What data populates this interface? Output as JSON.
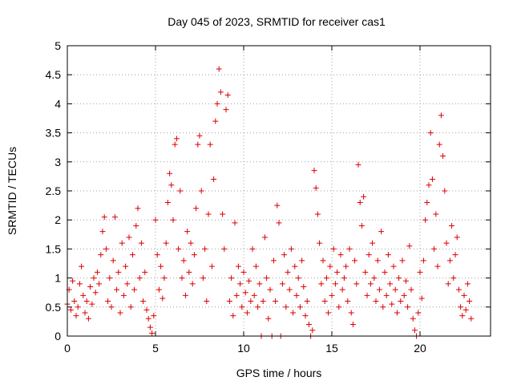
{
  "chart_data": {
    "type": "scatter",
    "title": "Day 045 of 2023, SRMTID for receiver cas1",
    "xlabel": "GPS time / hours",
    "ylabel": "SRMTID / TECUs",
    "xlim": [
      0,
      24
    ],
    "ylim": [
      0,
      5
    ],
    "xticks": [
      0,
      5,
      10,
      15,
      20
    ],
    "xtick_labels": [
      "0",
      "5",
      "10",
      "15",
      "20"
    ],
    "yticks": [
      0,
      0.5,
      1,
      1.5,
      2,
      2.5,
      3,
      3.5,
      4,
      4.5,
      5
    ],
    "ytick_labels": [
      "0",
      "0.5",
      "1",
      "1.5",
      "2",
      "2.5",
      "3",
      "3.5",
      "4",
      "4.5",
      "5"
    ],
    "grid": true,
    "marker": "+",
    "color": "#dd0000",
    "series": [
      {
        "name": "cas1",
        "points": [
          [
            0.0,
            0.55
          ],
          [
            0.1,
            0.8
          ],
          [
            0.2,
            0.45
          ],
          [
            0.3,
            0.95
          ],
          [
            0.4,
            0.6
          ],
          [
            0.5,
            0.35
          ],
          [
            0.6,
            0.5
          ],
          [
            0.7,
            0.9
          ],
          [
            0.8,
            1.2
          ],
          [
            0.9,
            0.7
          ],
          [
            1.0,
            0.4
          ],
          [
            1.1,
            0.6
          ],
          [
            1.2,
            0.3
          ],
          [
            1.3,
            0.85
          ],
          [
            1.4,
            0.55
          ],
          [
            1.5,
            1.0
          ],
          [
            1.6,
            0.75
          ],
          [
            1.7,
            1.1
          ],
          [
            1.8,
            0.9
          ],
          [
            1.9,
            1.4
          ],
          [
            2.0,
            1.8
          ],
          [
            2.1,
            2.05
          ],
          [
            2.2,
            1.5
          ],
          [
            2.3,
            0.6
          ],
          [
            2.4,
            1.0
          ],
          [
            2.5,
            0.5
          ],
          [
            2.6,
            1.3
          ],
          [
            2.7,
            2.05
          ],
          [
            2.8,
            0.8
          ],
          [
            2.9,
            1.1
          ],
          [
            3.0,
            0.4
          ],
          [
            3.1,
            1.6
          ],
          [
            3.2,
            0.7
          ],
          [
            3.3,
            1.2
          ],
          [
            3.4,
            0.9
          ],
          [
            3.5,
            1.7
          ],
          [
            3.6,
            0.5
          ],
          [
            3.7,
            1.4
          ],
          [
            3.8,
            0.8
          ],
          [
            3.9,
            1.9
          ],
          [
            4.0,
            2.2
          ],
          [
            4.1,
            1.0
          ],
          [
            4.2,
            1.6
          ],
          [
            4.3,
            0.6
          ],
          [
            4.4,
            1.1
          ],
          [
            4.5,
            0.45
          ],
          [
            4.6,
            0.3
          ],
          [
            4.7,
            0.15
          ],
          [
            4.8,
            0.05
          ],
          [
            4.9,
            0.35
          ],
          [
            5.0,
            2.0
          ],
          [
            5.1,
            1.4
          ],
          [
            5.2,
            0.8
          ],
          [
            5.3,
            1.2
          ],
          [
            5.4,
            0.65
          ],
          [
            5.5,
            1.0
          ],
          [
            5.6,
            1.6
          ],
          [
            5.7,
            2.3
          ],
          [
            5.8,
            2.8
          ],
          [
            5.9,
            2.6
          ],
          [
            6.0,
            2.0
          ],
          [
            6.1,
            3.3
          ],
          [
            6.2,
            3.4
          ],
          [
            6.3,
            1.5
          ],
          [
            6.4,
            2.5
          ],
          [
            6.5,
            1.0
          ],
          [
            6.6,
            1.3
          ],
          [
            6.7,
            0.7
          ],
          [
            6.8,
            1.8
          ],
          [
            6.9,
            1.1
          ],
          [
            7.0,
            1.6
          ],
          [
            7.1,
            0.9
          ],
          [
            7.2,
            1.4
          ],
          [
            7.3,
            2.2
          ],
          [
            7.4,
            3.3
          ],
          [
            7.5,
            3.45
          ],
          [
            7.6,
            2.5
          ],
          [
            7.7,
            1.0
          ],
          [
            7.8,
            1.5
          ],
          [
            7.9,
            0.6
          ],
          [
            8.0,
            2.1
          ],
          [
            8.1,
            3.3
          ],
          [
            8.2,
            1.2
          ],
          [
            8.3,
            2.7
          ],
          [
            8.4,
            3.7
          ],
          [
            8.5,
            4.0
          ],
          [
            8.6,
            4.6
          ],
          [
            8.7,
            4.2
          ],
          [
            8.8,
            2.1
          ],
          [
            8.9,
            1.5
          ],
          [
            9.0,
            3.9
          ],
          [
            9.1,
            4.15
          ],
          [
            9.2,
            0.6
          ],
          [
            9.3,
            1.0
          ],
          [
            9.4,
            0.35
          ],
          [
            9.5,
            1.95
          ],
          [
            9.6,
            0.7
          ],
          [
            9.7,
            1.2
          ],
          [
            9.8,
            0.9
          ],
          [
            9.9,
            0.5
          ],
          [
            10.0,
            1.1
          ],
          [
            10.1,
            0.75
          ],
          [
            10.2,
            0.4
          ],
          [
            10.3,
            0.95
          ],
          [
            10.4,
            0.6
          ],
          [
            10.5,
            1.5
          ],
          [
            10.6,
            0.7
          ],
          [
            10.7,
            1.2
          ],
          [
            10.8,
            0.5
          ],
          [
            10.9,
            0.9
          ],
          [
            11.0,
            0.0
          ],
          [
            11.1,
            0.6
          ],
          [
            11.2,
            1.7
          ],
          [
            11.3,
            1.0
          ],
          [
            11.4,
            0.3
          ],
          [
            11.5,
            0.8
          ],
          [
            11.6,
            0.0
          ],
          [
            11.7,
            1.3
          ],
          [
            11.8,
            0.6
          ],
          [
            11.9,
            2.25
          ],
          [
            12.0,
            1.95
          ],
          [
            12.1,
            0.0
          ],
          [
            12.2,
            0.9
          ],
          [
            12.3,
            1.4
          ],
          [
            12.4,
            0.5
          ],
          [
            12.5,
            1.1
          ],
          [
            12.6,
            0.8
          ],
          [
            12.7,
            1.5
          ],
          [
            12.8,
            0.4
          ],
          [
            12.9,
            1.2
          ],
          [
            13.0,
            0.7
          ],
          [
            13.1,
            1.0
          ],
          [
            13.2,
            0.5
          ],
          [
            13.3,
            1.3
          ],
          [
            13.4,
            0.85
          ],
          [
            13.5,
            0.35
          ],
          [
            13.6,
            0.6
          ],
          [
            13.7,
            0.2
          ],
          [
            13.8,
            0.0
          ],
          [
            13.9,
            0.1
          ],
          [
            14.0,
            2.85
          ],
          [
            14.1,
            2.55
          ],
          [
            14.2,
            2.1
          ],
          [
            14.3,
            1.6
          ],
          [
            14.4,
            0.9
          ],
          [
            14.5,
            1.3
          ],
          [
            14.6,
            0.6
          ],
          [
            14.7,
            1.0
          ],
          [
            14.8,
            0.4
          ],
          [
            14.9,
            1.2
          ],
          [
            15.0,
            0.7
          ],
          [
            15.1,
            1.5
          ],
          [
            15.2,
            0.9
          ],
          [
            15.3,
            1.1
          ],
          [
            15.4,
            0.5
          ],
          [
            15.5,
            1.4
          ],
          [
            15.6,
            0.8
          ],
          [
            15.7,
            1.0
          ],
          [
            15.8,
            1.2
          ],
          [
            15.9,
            0.6
          ],
          [
            16.0,
            1.5
          ],
          [
            16.1,
            0.4
          ],
          [
            16.2,
            0.2
          ],
          [
            16.3,
            1.3
          ],
          [
            16.4,
            0.9
          ],
          [
            16.5,
            2.95
          ],
          [
            16.6,
            2.3
          ],
          [
            16.7,
            1.9
          ],
          [
            16.8,
            2.4
          ],
          [
            16.9,
            1.1
          ],
          [
            17.0,
            0.7
          ],
          [
            17.1,
            1.4
          ],
          [
            17.2,
            0.9
          ],
          [
            17.3,
            1.6
          ],
          [
            17.4,
            1.0
          ],
          [
            17.5,
            0.6
          ],
          [
            17.6,
            1.3
          ],
          [
            17.7,
            0.8
          ],
          [
            17.8,
            1.8
          ],
          [
            17.9,
            0.5
          ],
          [
            18.0,
            1.1
          ],
          [
            18.1,
            0.7
          ],
          [
            18.2,
            1.4
          ],
          [
            18.3,
            0.9
          ],
          [
            18.4,
            0.55
          ],
          [
            18.5,
            1.2
          ],
          [
            18.6,
            0.8
          ],
          [
            18.7,
            0.4
          ],
          [
            18.8,
            1.0
          ],
          [
            18.9,
            0.6
          ],
          [
            19.0,
            1.3
          ],
          [
            19.1,
            0.7
          ],
          [
            19.2,
            0.95
          ],
          [
            19.3,
            0.5
          ],
          [
            19.4,
            1.55
          ],
          [
            19.5,
            0.8
          ],
          [
            19.6,
            0.3
          ],
          [
            19.7,
            0.1
          ],
          [
            19.8,
            0.0
          ],
          [
            19.9,
            0.4
          ],
          [
            20.0,
            1.1
          ],
          [
            20.1,
            0.65
          ],
          [
            20.2,
            1.3
          ],
          [
            20.3,
            2.0
          ],
          [
            20.4,
            2.3
          ],
          [
            20.5,
            2.6
          ],
          [
            20.6,
            3.5
          ],
          [
            20.7,
            2.7
          ],
          [
            20.8,
            1.5
          ],
          [
            20.9,
            2.1
          ],
          [
            21.0,
            1.2
          ],
          [
            21.1,
            3.3
          ],
          [
            21.2,
            3.8
          ],
          [
            21.3,
            3.1
          ],
          [
            21.4,
            2.5
          ],
          [
            21.5,
            1.6
          ],
          [
            21.6,
            0.9
          ],
          [
            21.7,
            1.3
          ],
          [
            21.8,
            1.9
          ],
          [
            21.9,
            1.0
          ],
          [
            22.0,
            1.4
          ],
          [
            22.1,
            1.7
          ],
          [
            22.2,
            0.8
          ],
          [
            22.3,
            0.5
          ],
          [
            22.4,
            0.35
          ],
          [
            22.5,
            0.7
          ],
          [
            22.6,
            0.45
          ],
          [
            22.7,
            0.9
          ],
          [
            22.8,
            0.6
          ],
          [
            22.9,
            0.3
          ]
        ]
      }
    ]
  }
}
